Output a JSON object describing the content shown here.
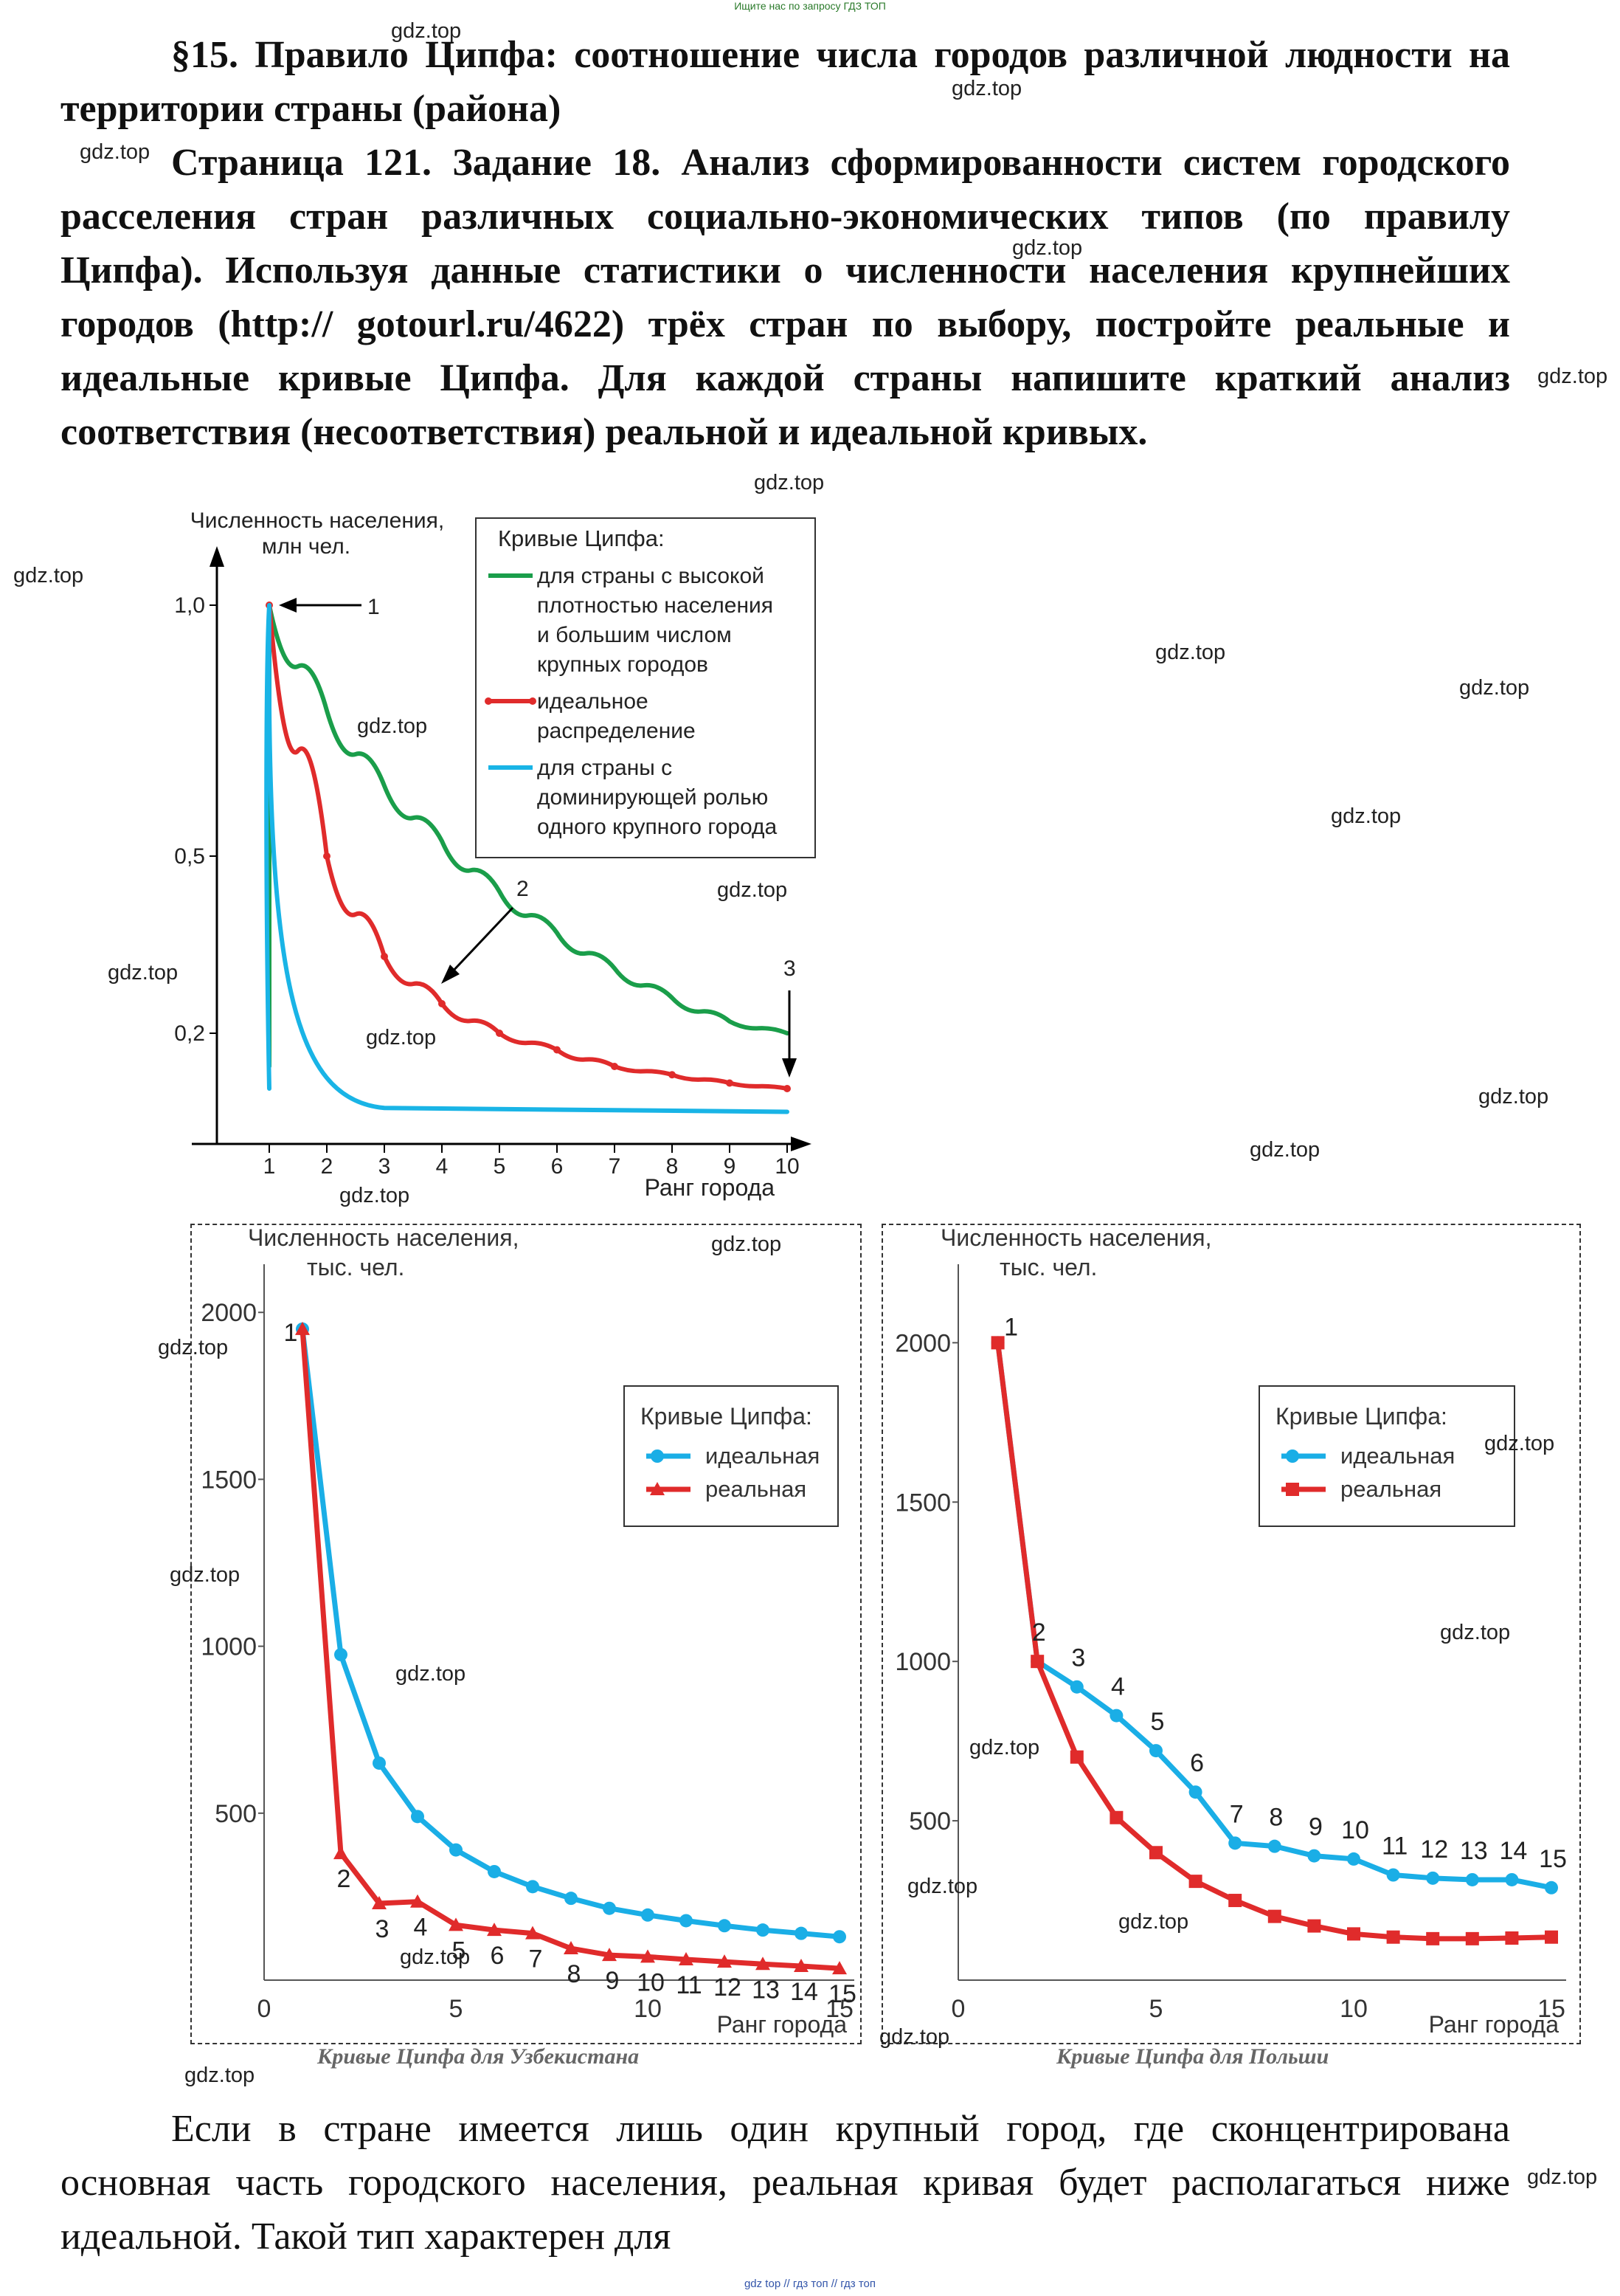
{
  "banner_top": "Ищите нас по запросу ГДЗ ТОП",
  "banner_bottom": "gdz top  //  гдз топ  //  гдз топ",
  "heading_lines": [
    "§15. Правило Ципфа: соотношение числа городов различной",
    "людности на территории страны (района)"
  ],
  "task_lines": [
    "Страница 121. Задание 18. Анализ сформированности систем",
    "городского расселения стран различных социально-экономических",
    "типов (по правилу Ципфа). Используя данные статистики о численности",
    "населения крупнейших городов (http:// gotourl.ru/4622) трёх стран по",
    "выбору, постройте реальные и идеальные кривые Ципфа. Для каждой",
    "страны напишите краткий анализ соответствия (несоответствия)",
    "реальной и идеальной кривых."
  ],
  "bottom_lines": [
    "Если в стране имеется лишь один крупный город, где",
    "сконцентрирована основная часть городского населения, реальная кривая",
    "будет располагаться ниже идеальной. Такой тип характерен для"
  ],
  "watermark": "gdz.top",
  "chart_data": [
    {
      "type": "line",
      "ylabel": "Численность населения, млн чел.",
      "xlabel": "Ранг города",
      "x": [
        1,
        2,
        3,
        4,
        5,
        6,
        7,
        8,
        9,
        10
      ],
      "ytick_labels": [
        "1,0",
        "0,5",
        "0,2"
      ],
      "xtick_labels": [
        "1",
        "2",
        "3",
        "4",
        "5",
        "6",
        "7",
        "8",
        "9",
        "10"
      ],
      "legend_title": "Кривые Ципфа:",
      "series": [
        {
          "name": "для страны с высокой плотностью населения и большим числом крупных городов",
          "color": "#1a9e4a",
          "values": [
            1.0,
            0.79,
            0.64,
            0.53,
            0.44,
            0.37,
            0.31,
            0.26,
            0.22,
            0.2
          ]
        },
        {
          "name": "идеальное распределение",
          "color": "#e02b2b",
          "values": [
            1.0,
            0.5,
            0.33,
            0.25,
            0.2,
            0.17,
            0.14,
            0.125,
            0.11,
            0.1
          ]
        },
        {
          "name": "для страны с доминирующей ролью одного крупного города",
          "color": "#19b4e6",
          "values": [
            1.0,
            0.12,
            0.075,
            0.065,
            0.06,
            0.06,
            0.06,
            0.058,
            0.058,
            0.058
          ]
        }
      ],
      "legend_lines": [
        [
          "для страны с высокой",
          "плотностью населения",
          "и большим числом",
          "крупных городов"
        ],
        [
          "идеальное",
          "распределение"
        ],
        [
          "для страны с",
          "доминирующей ролью",
          "одного крупного города"
        ]
      ],
      "annotations": [
        "1",
        "2",
        "3"
      ]
    },
    {
      "type": "line",
      "caption": "Кривые Ципфа для Узбекистана",
      "ylabel_lines": [
        "Численность населения,",
        "тыс. чел."
      ],
      "xlabel": "Ранг города",
      "x": [
        1,
        2,
        3,
        4,
        5,
        6,
        7,
        8,
        9,
        10,
        11,
        12,
        13,
        14,
        15
      ],
      "yticks": [
        500,
        1000,
        1500,
        2000
      ],
      "xticks": [
        0,
        5,
        10,
        15
      ],
      "ylim": [
        0,
        2100
      ],
      "legend_title": "Кривые Ципфа:",
      "series": [
        {
          "name": "идеальная",
          "color": "#1aaee6",
          "values": [
            1950,
            975,
            650,
            490,
            390,
            325,
            280,
            245,
            215,
            195,
            178,
            163,
            150,
            140,
            130
          ]
        },
        {
          "name": "реальная",
          "color": "#e02b2b",
          "values": [
            1950,
            380,
            230,
            235,
            165,
            150,
            140,
            95,
            75,
            70,
            62,
            55,
            48,
            42,
            35
          ]
        }
      ],
      "point_labels": [
        "1",
        "2",
        "3",
        "4",
        "5",
        "6",
        "7",
        "8",
        "9",
        "10",
        "11",
        "12",
        "13",
        "14",
        "15"
      ]
    },
    {
      "type": "line",
      "caption": "Кривые Ципфа для Польши",
      "ylabel_lines": [
        "Численность населения,",
        "тыс. чел."
      ],
      "xlabel": "Ранг города",
      "x": [
        1,
        2,
        3,
        4,
        5,
        6,
        7,
        8,
        9,
        10,
        11,
        12,
        13,
        14,
        15
      ],
      "yticks": [
        500,
        1000,
        1500,
        2000
      ],
      "xticks": [
        0,
        5,
        10,
        15
      ],
      "ylim": [
        0,
        2200
      ],
      "legend_title": "Кривые Ципфа:",
      "series": [
        {
          "name": "идеальная",
          "color": "#1aaee6",
          "values": [
            2000,
            1000,
            920,
            830,
            720,
            590,
            430,
            420,
            390,
            380,
            330,
            320,
            315,
            315,
            290
          ]
        },
        {
          "name": "реальная",
          "color": "#e02b2b",
          "values": [
            2000,
            1000,
            700,
            510,
            400,
            310,
            250,
            200,
            170,
            145,
            135,
            130,
            130,
            132,
            135
          ]
        }
      ],
      "point_labels": [
        "1",
        "2",
        "3",
        "4",
        "5",
        "6",
        "7",
        "8",
        "9",
        "10",
        "11",
        "12",
        "13",
        "14",
        "15"
      ]
    }
  ]
}
